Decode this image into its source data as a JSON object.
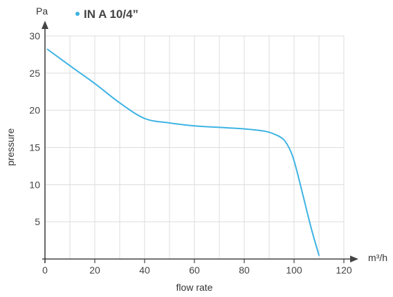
{
  "chart_data": {
    "type": "line",
    "title": "",
    "xlabel": "flow rate",
    "ylabel": "pressure",
    "x_unit": "m³/h",
    "y_unit": "Pa",
    "xlim": [
      0,
      120
    ],
    "ylim": [
      0,
      30
    ],
    "x_ticks": [
      0,
      20,
      40,
      60,
      80,
      100,
      120
    ],
    "y_ticks": [
      5,
      10,
      15,
      20,
      25,
      30
    ],
    "grid": true,
    "legend_position": "top",
    "series": [
      {
        "name": "IN A 10/4”",
        "color": "#3db3e3",
        "x": [
          1,
          10,
          20,
          30,
          40,
          50,
          60,
          70,
          80,
          88,
          92,
          96,
          99,
          101,
          104,
          107,
          110
        ],
        "y": [
          28.2,
          26,
          23.6,
          21,
          18.9,
          18.3,
          17.9,
          17.7,
          17.5,
          17.2,
          16.8,
          16,
          14.2,
          12,
          8,
          4,
          0.5
        ]
      }
    ]
  }
}
